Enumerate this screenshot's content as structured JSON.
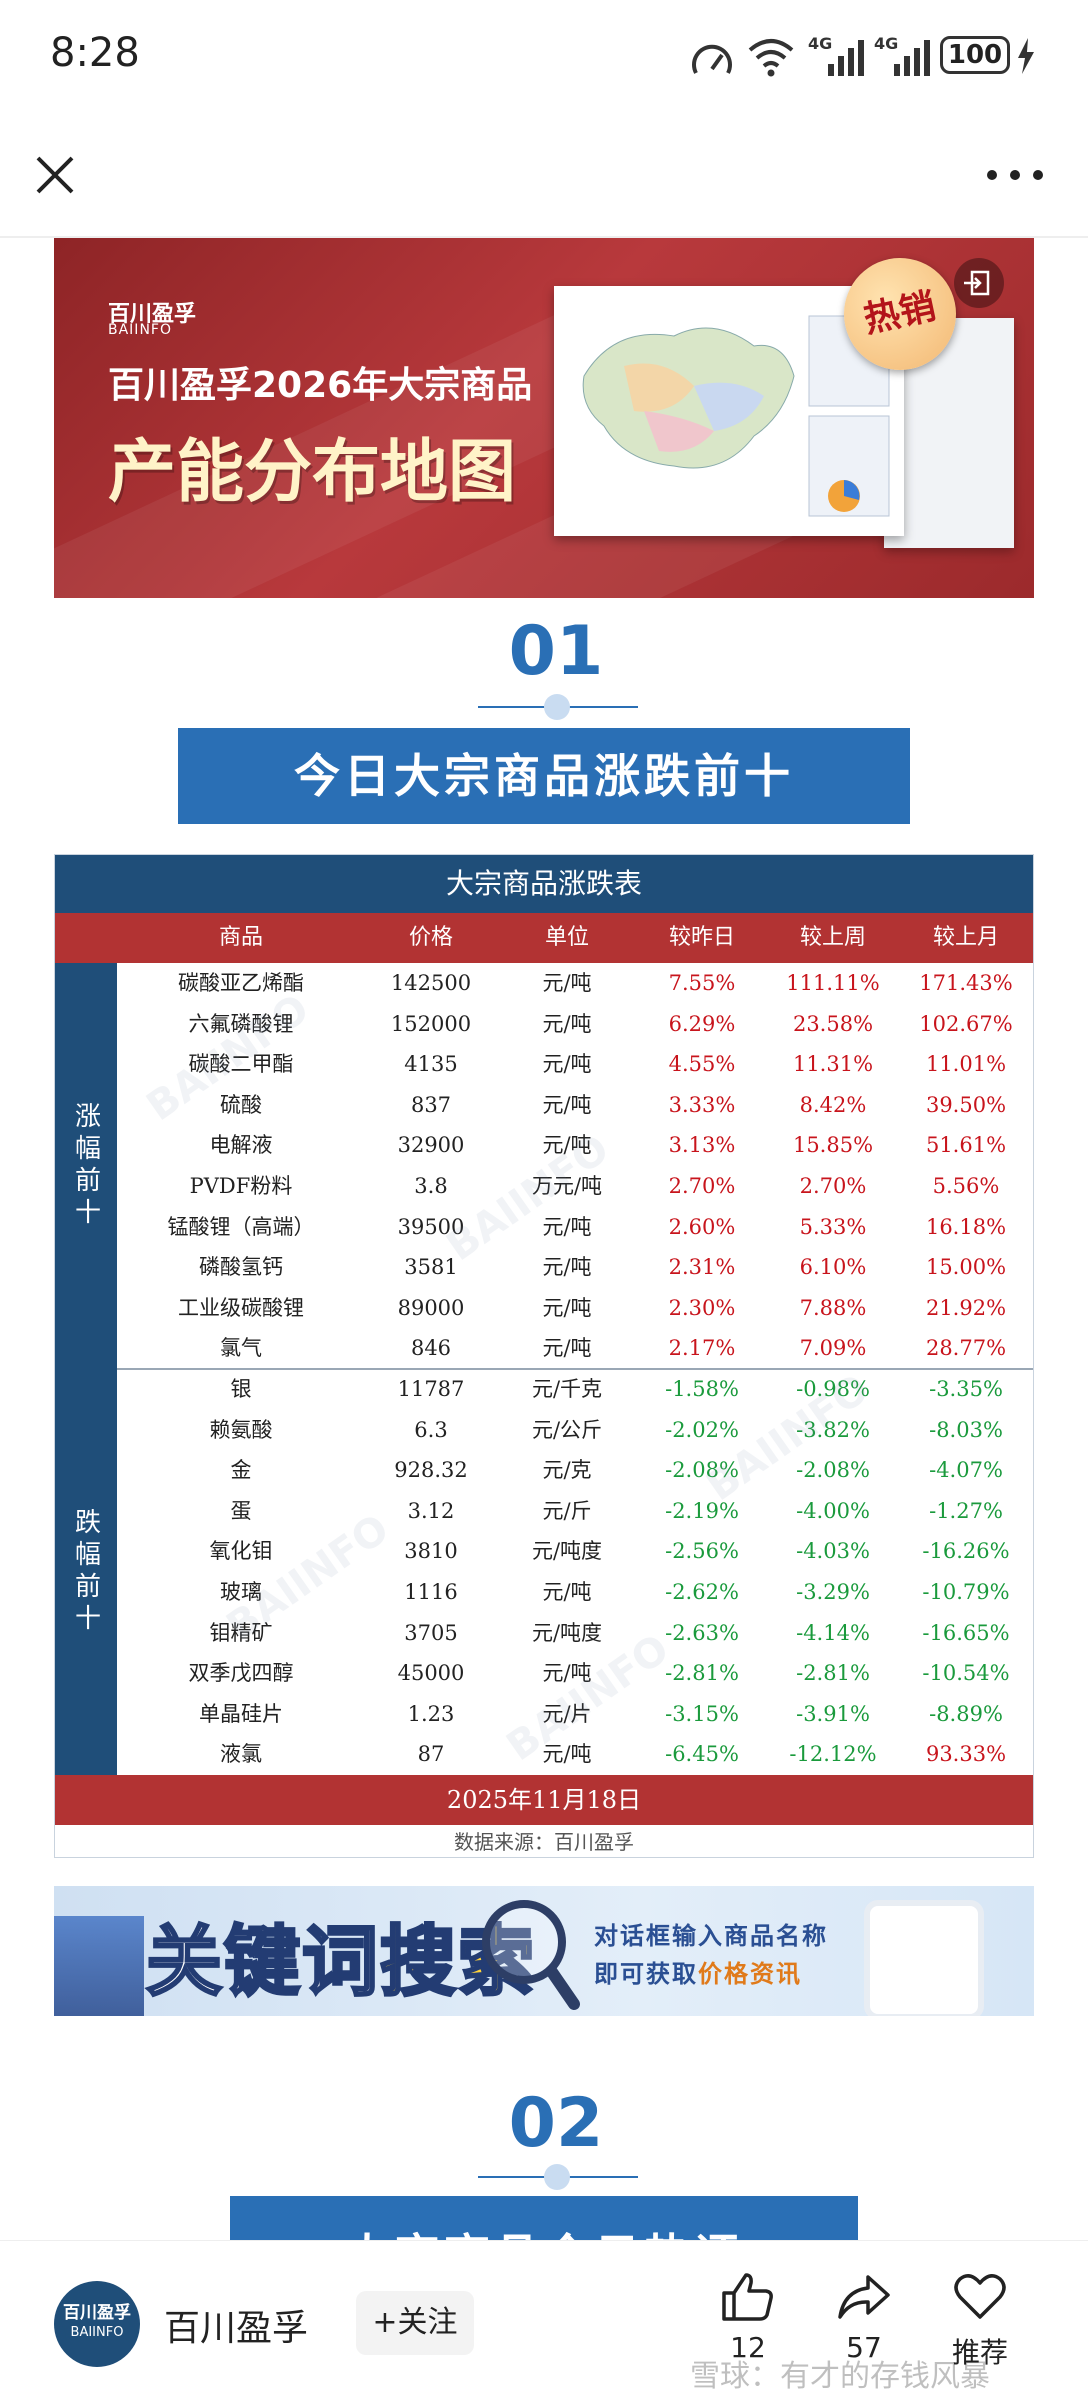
{
  "status_bar": {
    "time": "8:28",
    "signal1_label": "4G",
    "signal2_label": "4G",
    "battery": "100"
  },
  "nav": {
    "close_icon": "close-icon",
    "more_icon": "more-icon"
  },
  "banner1": {
    "logo_cn": "百川盈孚",
    "logo_en": "BAIINFO",
    "title_line1": "百川盈孚2026年大宗商品",
    "title_line2": "产能分布地图",
    "hot_badge": "热销"
  },
  "section1": {
    "number": "01",
    "title": "今日大宗商品涨跌前十"
  },
  "table": {
    "title": "大宗商品涨跌表",
    "columns": [
      "商品",
      "价格",
      "单位",
      "较昨日",
      "较上周",
      "较上月"
    ],
    "rise_label": "涨幅前十",
    "fall_label": "跌幅前十",
    "rise_rows": [
      [
        "碳酸亚乙烯酯",
        "142500",
        "元/吨",
        "7.55%",
        "111.11%",
        "171.43%"
      ],
      [
        "六氟磷酸锂",
        "152000",
        "元/吨",
        "6.29%",
        "23.58%",
        "102.67%"
      ],
      [
        "碳酸二甲酯",
        "4135",
        "元/吨",
        "4.55%",
        "11.31%",
        "11.01%"
      ],
      [
        "硫酸",
        "837",
        "元/吨",
        "3.33%",
        "8.42%",
        "39.50%"
      ],
      [
        "电解液",
        "32900",
        "元/吨",
        "3.13%",
        "15.85%",
        "51.61%"
      ],
      [
        "PVDF粉料",
        "3.8",
        "万元/吨",
        "2.70%",
        "2.70%",
        "5.56%"
      ],
      [
        "锰酸锂（高端）",
        "39500",
        "元/吨",
        "2.60%",
        "5.33%",
        "16.18%"
      ],
      [
        "磷酸氢钙",
        "3581",
        "元/吨",
        "2.31%",
        "6.10%",
        "15.00%"
      ],
      [
        "工业级碳酸锂",
        "89000",
        "元/吨",
        "2.30%",
        "7.88%",
        "21.92%"
      ],
      [
        "氯气",
        "846",
        "元/吨",
        "2.17%",
        "7.09%",
        "28.77%"
      ]
    ],
    "fall_rows": [
      [
        "银",
        "11787",
        "元/千克",
        "-1.58%",
        "-0.98%",
        "-3.35%"
      ],
      [
        "赖氨酸",
        "6.3",
        "元/公斤",
        "-2.02%",
        "-3.82%",
        "-8.03%"
      ],
      [
        "金",
        "928.32",
        "元/克",
        "-2.08%",
        "-2.08%",
        "-4.07%"
      ],
      [
        "蛋",
        "3.12",
        "元/斤",
        "-2.19%",
        "-4.00%",
        "-1.27%"
      ],
      [
        "氧化钼",
        "3810",
        "元/吨度",
        "-2.56%",
        "-4.03%",
        "-16.26%"
      ],
      [
        "玻璃",
        "1116",
        "元/吨",
        "-2.62%",
        "-3.29%",
        "-10.79%"
      ],
      [
        "钼精矿",
        "3705",
        "元/吨度",
        "-2.63%",
        "-4.14%",
        "-16.65%"
      ],
      [
        "双季戊四醇",
        "45000",
        "元/吨",
        "-2.81%",
        "-2.81%",
        "-10.54%"
      ],
      [
        "单晶硅片",
        "1.23",
        "元/片",
        "-3.15%",
        "-3.91%",
        "-8.89%"
      ],
      [
        "液氯",
        "87",
        "元/吨",
        "-6.45%",
        "-12.12%",
        "93.33%"
      ]
    ],
    "date": "2025年11月18日",
    "source": "数据来源：百川盈孚",
    "watermark_cn": "百川盈孚",
    "watermark_en": "BAIINFO"
  },
  "banner2": {
    "title_part1": "关键词",
    "title_part2": "搜索",
    "line1": "对话框输入商品名称",
    "line2_part1": "即可获取",
    "line2_part2": "价格资讯"
  },
  "section2": {
    "number": "02",
    "title": "大宗商品今日热评"
  },
  "bottom_bar": {
    "avatar_cn": "百川盈孚",
    "avatar_en": "BAIINFO",
    "account_name": "百川盈孚",
    "follow_label": "+关注",
    "like_count": "12",
    "share_count": "57",
    "recommend_label": "推荐",
    "watermark": "雪球：有才的存钱风暴"
  },
  "colors": {
    "accent_blue": "#2a6fb5",
    "table_navy": "#1f4e79",
    "table_red": "#b23333",
    "rise": "#c8141c",
    "fall": "#1a9a3c"
  }
}
